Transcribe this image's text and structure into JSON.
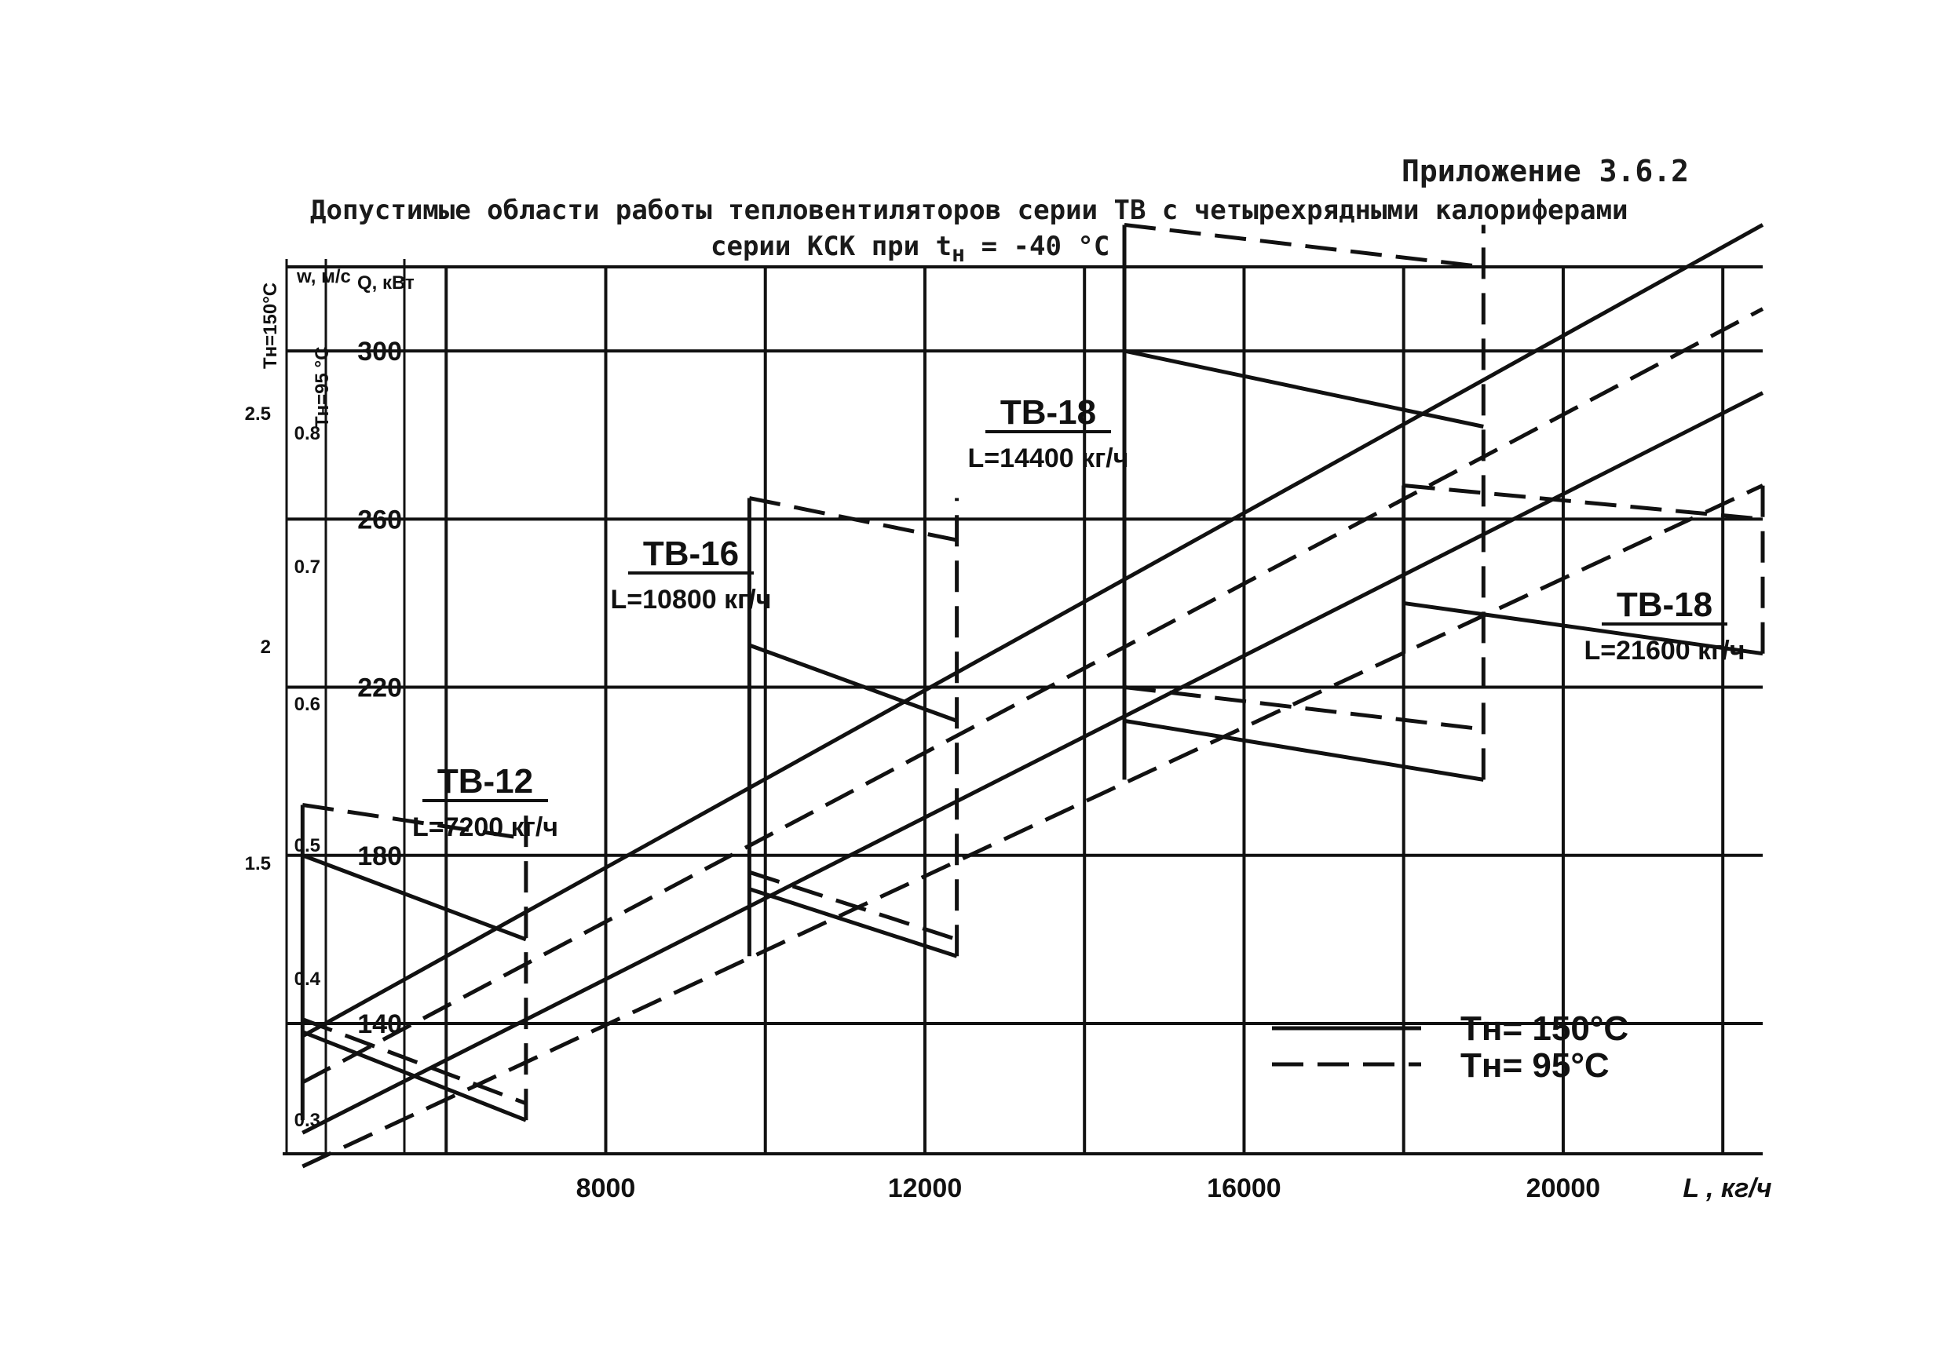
{
  "header": {
    "appendix": "Приложение 3.6.2",
    "title_line1": "Допустимые области работы тепловентиляторов серии ТВ с четырехрядными калориферами",
    "title_line2": "серии КСК при t",
    "title_sub": "н",
    "title_tail": " = -40 °С"
  },
  "chart_data": {
    "type": "line",
    "xlabel": "L , кг/ч",
    "x_ticks": [
      "8000",
      "12000",
      "16000",
      "20000"
    ],
    "xlim": [
      4000,
      22500
    ],
    "ylabel_Q": "Q, кВт",
    "ylim_Q": [
      109,
      320
    ],
    "y_ticks_Q": [
      "140",
      "180",
      "220",
      "260",
      "300"
    ],
    "axis_w_label": "w, м/с",
    "y_ticks_w": [
      "0.3",
      "0.4",
      "0.5",
      "0.6",
      "0.7",
      "0.8"
    ],
    "axis_th150_label": "Tн=150°С",
    "y_ticks_th150": [
      "1.5",
      "2",
      "2.5"
    ],
    "axis_th95_label": "Tн=95 °С",
    "legend": {
      "solid": "Tн= 150°С",
      "dashed": "Tн= 95°С"
    },
    "series": [
      {
        "style": "solid",
        "x": [
          4200,
          22500
        ],
        "y": [
          137,
          330
        ]
      },
      {
        "style": "solid",
        "x": [
          4200,
          22500
        ],
        "y": [
          114,
          290
        ]
      },
      {
        "style": "dashed",
        "x": [
          4200,
          22500
        ],
        "y": [
          126,
          310
        ]
      },
      {
        "style": "dashed",
        "x": [
          4200,
          22500
        ],
        "y": [
          106,
          268
        ]
      }
    ],
    "regions": [
      {
        "label": "ТВ-12",
        "sublabel": "L=7200 кг/ч",
        "style": "solid",
        "x": [
          4200,
          7000
        ],
        "y": [
          [
            138,
            117
          ],
          [
            141,
            121
          ],
          [
            180,
            160
          ],
          [
            192,
            184
          ]
        ]
      },
      {
        "label": "ТВ-16",
        "sublabel": "L=10800 кг/ч",
        "style": "solid",
        "x": [
          9800,
          12400
        ],
        "y": [
          [
            172,
            156
          ],
          [
            176,
            160
          ],
          [
            230,
            212
          ],
          [
            265,
            255
          ]
        ]
      },
      {
        "label": "ТВ-18",
        "sublabel": "L=14400 кг/ч",
        "style": "solid",
        "x": [
          14500,
          19000
        ],
        "y": [
          [
            212,
            198
          ],
          [
            220,
            210
          ],
          [
            300,
            282
          ],
          [
            330,
            320
          ]
        ]
      },
      {
        "label": "ТВ-18",
        "sublabel": "L=21600 кг/ч",
        "style": "dashed",
        "x": [
          18000,
          22500
        ],
        "y": [
          [
            240,
            228
          ],
          [
            268,
            260
          ]
        ]
      }
    ]
  }
}
